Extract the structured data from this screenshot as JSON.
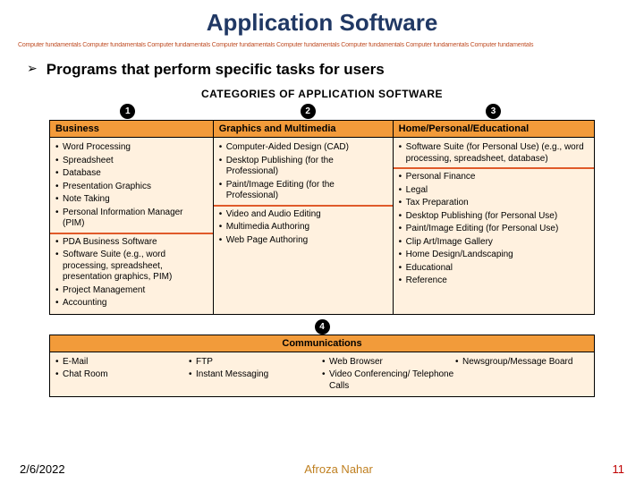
{
  "title": "Application Software",
  "divider_text": "Computer fundamentals Computer fundamentals Computer fundamentals Computer fundamentals Computer fundamentals Computer fundamentals Computer fundamentals Computer fundamentals",
  "bullet": "Programs that perform specific tasks for users",
  "figure": {
    "heading": "CATEGORIES OF APPLICATION SOFTWARE",
    "badges": [
      "1",
      "2",
      "3"
    ],
    "badge4": "4",
    "badge_positions_pct": [
      13,
      46,
      80
    ],
    "col_widths_pct": [
      30,
      33,
      37
    ],
    "header_bg": "#f29b3a",
    "cell_bg": "#fff1df",
    "sep_color": "#e05a2a",
    "columns": [
      {
        "header": "Business",
        "items_top": [
          "Word Processing",
          "Spreadsheet",
          "Database",
          "Presentation Graphics",
          "Note Taking",
          "Personal Information Manager (PIM)"
        ],
        "items_bottom": [
          "PDA Business Software",
          "Software Suite (e.g., word processing, spreadsheet, presentation graphics, PIM)",
          "Project Management",
          "Accounting"
        ]
      },
      {
        "header": "Graphics and Multimedia",
        "items_top": [
          "Computer-Aided Design (CAD)",
          "Desktop Publishing (for the Professional)",
          "Paint/Image Editing (for the Professional)"
        ],
        "items_bottom": [
          "Video and Audio Editing",
          "Multimedia Authoring",
          "Web Page Authoring"
        ]
      },
      {
        "header": "Home/Personal/Educational",
        "items_top": [
          "Software Suite (for Personal Use) (e.g., word processing, spreadsheet, database)"
        ],
        "items_bottom": [
          "Personal Finance",
          "Legal",
          "Tax Preparation",
          "Desktop Publishing (for Personal Use)",
          "Paint/Image Editing (for Personal Use)",
          "Clip Art/Image Gallery",
          "Home Design/Landscaping",
          "Educational",
          "Reference"
        ]
      }
    ],
    "communications": {
      "header": "Communications",
      "cols": [
        [
          "E-Mail",
          "Chat Room"
        ],
        [
          "FTP",
          "Instant Messaging"
        ],
        [
          "Web Browser",
          "Video Conferencing/ Telephone Calls"
        ],
        [
          "Newsgroup/Message Board"
        ]
      ]
    }
  },
  "footer": {
    "date": "2/6/2022",
    "author": "Afroza Nahar",
    "page": "11"
  }
}
